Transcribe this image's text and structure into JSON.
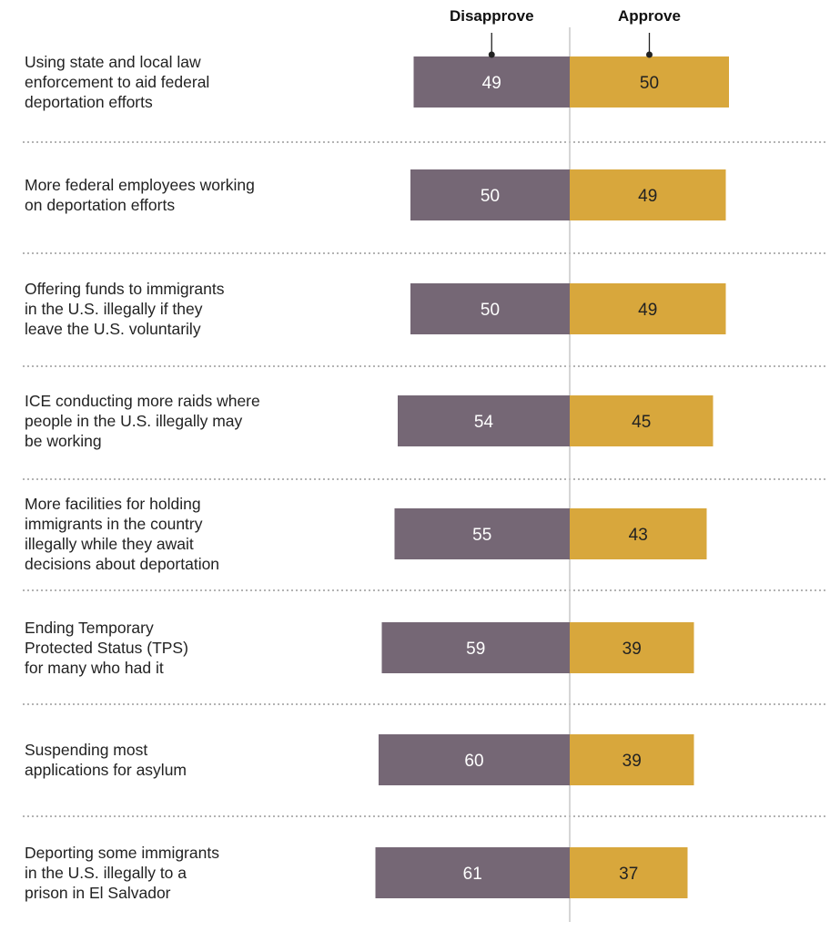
{
  "chart_data": {
    "type": "bar",
    "orientation": "horizontal-diverging",
    "series": [
      {
        "name": "Disapprove",
        "color": "#756775",
        "values": [
          49,
          50,
          50,
          54,
          55,
          59,
          60,
          61
        ]
      },
      {
        "name": "Approve",
        "color": "#d8a73c",
        "values": [
          50,
          49,
          49,
          45,
          43,
          39,
          39,
          37
        ]
      }
    ],
    "categories": [
      [
        "Using state and local law",
        "enforcement to aid federal",
        "deportation efforts"
      ],
      [
        "More federal employees working",
        "on deportation efforts"
      ],
      [
        "Offering funds to immigrants",
        "in the U.S. illegally if they",
        "leave the U.S. voluntarily"
      ],
      [
        "ICE conducting more raids where",
        "people in the U.S. illegally may",
        "be working"
      ],
      [
        "More facilities for holding",
        "immigrants in the country",
        "illegally while they await",
        "decisions about deportation"
      ],
      [
        "Ending Temporary",
        "Protected Status (TPS)",
        "for many who had it"
      ],
      [
        "Suspending most",
        "applications for asylum"
      ],
      [
        "Deporting some immigrants",
        "in the U.S. illegally to a",
        "prison in El Salvador"
      ]
    ],
    "value_labels": true,
    "grid": false,
    "separators": "dotted",
    "legend": "top"
  }
}
